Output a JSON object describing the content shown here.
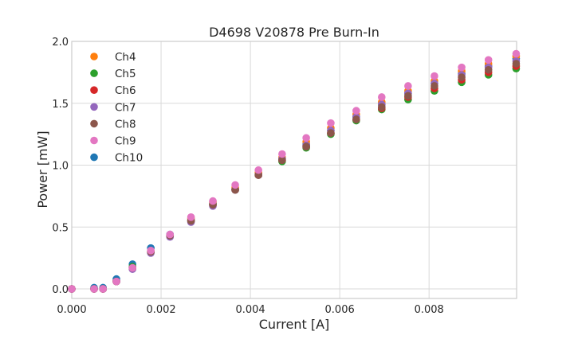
{
  "chart_data": {
    "type": "scatter",
    "title": "D4698 V20878 Pre Burn-In",
    "xlabel": "Current [A]",
    "ylabel": "Power [mW]",
    "xlim": [
      0,
      0.00996
    ],
    "ylim": [
      -0.077,
      2.0
    ],
    "xticks": [
      0,
      0.002,
      0.004,
      0.006,
      0.008
    ],
    "xtick_labels": [
      "0.000",
      "0.002",
      "0.004",
      "0.006",
      "0.008"
    ],
    "yticks": [
      0,
      0.5,
      1.0,
      1.5,
      2.0
    ],
    "ytick_labels": [
      "0.0",
      "0.5",
      "1.0",
      "1.5",
      "2.0"
    ],
    "grid": true,
    "legend_position": "top-left",
    "x": [
      0,
      0.0005,
      0.0007,
      0.001,
      0.00136,
      0.00177,
      0.0022,
      0.00267,
      0.00316,
      0.00366,
      0.00418,
      0.00471,
      0.00525,
      0.0058,
      0.00637,
      0.00694,
      0.00753,
      0.00812,
      0.00873,
      0.00933,
      0.00995
    ],
    "series": [
      {
        "name": "Ch4",
        "color": "#ff7f0e",
        "values": [
          0,
          0,
          0,
          0.06,
          0.17,
          0.3,
          0.43,
          0.57,
          0.7,
          0.82,
          0.94,
          1.06,
          1.19,
          1.3,
          1.41,
          1.51,
          1.6,
          1.68,
          1.76,
          1.82,
          1.88
        ]
      },
      {
        "name": "Ch5",
        "color": "#2ca02c",
        "values": [
          0,
          0,
          0,
          0.06,
          0.18,
          0.3,
          0.43,
          0.55,
          0.68,
          0.8,
          0.92,
          1.03,
          1.14,
          1.25,
          1.36,
          1.45,
          1.53,
          1.6,
          1.67,
          1.73,
          1.78
        ]
      },
      {
        "name": "Ch6",
        "color": "#d62728",
        "values": [
          0,
          0,
          0,
          0.06,
          0.17,
          0.3,
          0.43,
          0.55,
          0.68,
          0.8,
          0.92,
          1.04,
          1.15,
          1.26,
          1.37,
          1.46,
          1.55,
          1.62,
          1.69,
          1.75,
          1.8
        ]
      },
      {
        "name": "Ch7",
        "color": "#9467bd",
        "values": [
          0,
          0,
          0,
          0.06,
          0.16,
          0.29,
          0.42,
          0.54,
          0.67,
          0.8,
          0.92,
          1.05,
          1.16,
          1.28,
          1.39,
          1.49,
          1.58,
          1.66,
          1.73,
          1.79,
          1.84
        ]
      },
      {
        "name": "Ch8",
        "color": "#8c564b",
        "values": [
          0,
          0,
          0,
          0.06,
          0.17,
          0.3,
          0.43,
          0.55,
          0.68,
          0.8,
          0.92,
          1.04,
          1.15,
          1.26,
          1.37,
          1.47,
          1.56,
          1.64,
          1.71,
          1.77,
          1.82
        ]
      },
      {
        "name": "Ch9",
        "color": "#e377c2",
        "values": [
          0,
          0,
          0,
          0.06,
          0.17,
          0.31,
          0.44,
          0.58,
          0.71,
          0.84,
          0.96,
          1.09,
          1.22,
          1.34,
          1.44,
          1.55,
          1.64,
          1.72,
          1.79,
          1.85,
          1.9
        ]
      },
      {
        "name": "Ch10",
        "color": "#1f77b4",
        "values": [
          0,
          0.01,
          0.01,
          0.08,
          0.2,
          0.33,
          0.44,
          0.56,
          0.69,
          0.81,
          0.93,
          1.05,
          1.17,
          1.28,
          1.39,
          1.49,
          1.58,
          1.66,
          1.74,
          1.8,
          1.86
        ]
      }
    ]
  }
}
